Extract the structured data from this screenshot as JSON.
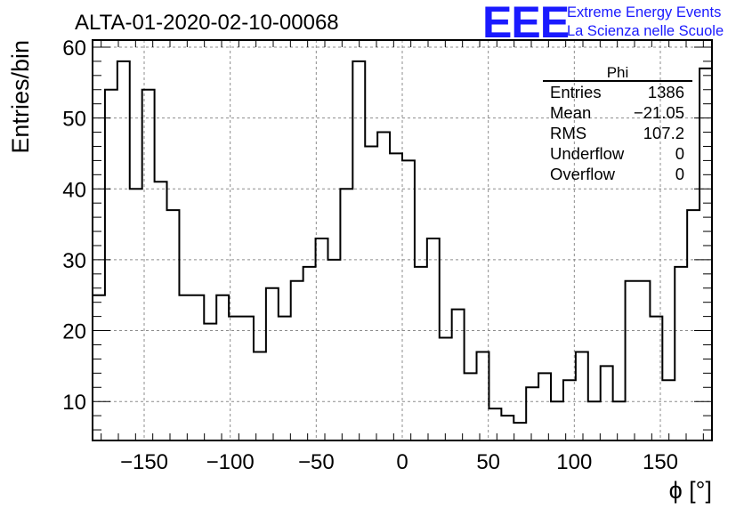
{
  "title": "ALTA-01-2020-02-10-00068",
  "logo": {
    "mark": "EEE",
    "line1": "Extreme Energy Events",
    "line2": "La Scienza nelle Scuole",
    "color": "#1a1aff"
  },
  "stats": {
    "title": "Phi",
    "rows": [
      {
        "label": "Entries",
        "value": "1386"
      },
      {
        "label": "Mean",
        "value": "−21.05"
      },
      {
        "label": "RMS",
        "value": "107.2"
      },
      {
        "label": "Underflow",
        "value": "0"
      },
      {
        "label": "Overflow",
        "value": "0"
      }
    ]
  },
  "chart_data": {
    "type": "histogram",
    "title": "ALTA-01-2020-02-10-00068",
    "xlabel": "ϕ [°]",
    "ylabel": "Entries/bin",
    "xlim": [
      -180,
      180
    ],
    "ylim": [
      4.5,
      61
    ],
    "grid": true,
    "xticks": [
      -150,
      -100,
      -50,
      0,
      50,
      100,
      150
    ],
    "xtick_labels": [
      "−150",
      "−100",
      "−50",
      "0",
      "50",
      "100",
      "150"
    ],
    "yticks": [
      10,
      20,
      30,
      40,
      50,
      60
    ],
    "ytick_labels": [
      "10",
      "20",
      "30",
      "40",
      "50",
      "60"
    ],
    "bin_edges_start": -180,
    "bin_width": 7.2,
    "values": [
      25,
      54,
      58,
      40,
      54,
      41,
      37,
      25,
      25,
      21,
      25,
      22,
      22,
      17,
      26,
      22,
      27,
      29,
      33,
      30,
      40,
      58,
      46,
      48,
      45,
      44,
      29,
      33,
      19,
      23,
      14,
      17,
      9,
      8,
      7,
      12,
      14,
      10,
      13,
      17,
      10,
      15,
      10,
      27,
      27,
      22,
      13,
      29,
      37,
      57
    ],
    "line_color": "#000000"
  }
}
